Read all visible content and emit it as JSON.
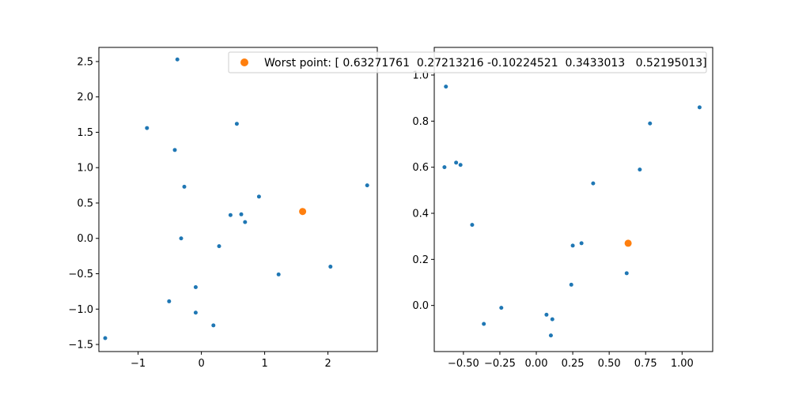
{
  "legend": {
    "label": "Worst point: [ 0.63271761  0.27213216 -0.10224521  0.3433013   0.52195013]",
    "placement": "upper-right",
    "marker_color": "#ff7f0e"
  },
  "colors": {
    "points": "#1f77b4",
    "highlight": "#ff7f0e",
    "axes": "#000000"
  },
  "chart_data": [
    {
      "type": "scatter",
      "xlim": [
        -1.62,
        2.78
      ],
      "ylim": [
        -1.6,
        2.7
      ],
      "xticks": [
        -1,
        0,
        1,
        2
      ],
      "xtick_labels": [
        "−1",
        "0",
        "1",
        "2"
      ],
      "yticks": [
        -1.5,
        -1.0,
        -0.5,
        0.0,
        0.5,
        1.0,
        1.5,
        2.0,
        2.5
      ],
      "ytick_labels": [
        "−1.5",
        "−1.0",
        "−0.5",
        "0.0",
        "0.5",
        "1.0",
        "1.5",
        "2.0",
        "2.5"
      ],
      "series": [
        {
          "color": "#1f77b4",
          "marker_size": "small",
          "points": [
            [
              -0.38,
              2.53
            ],
            [
              -0.86,
              1.56
            ],
            [
              0.56,
              1.62
            ],
            [
              -0.42,
              1.25
            ],
            [
              -0.27,
              0.73
            ],
            [
              0.91,
              0.59
            ],
            [
              2.62,
              0.75
            ],
            [
              0.46,
              0.33
            ],
            [
              0.63,
              0.34
            ],
            [
              0.69,
              0.23
            ],
            [
              -0.32,
              0.0
            ],
            [
              0.28,
              -0.11
            ],
            [
              1.22,
              -0.51
            ],
            [
              2.04,
              -0.4
            ],
            [
              -0.09,
              -0.69
            ],
            [
              -0.51,
              -0.89
            ],
            [
              -0.09,
              -1.05
            ],
            [
              0.19,
              -1.23
            ],
            [
              -1.52,
              -1.41
            ]
          ]
        },
        {
          "color": "#ff7f0e",
          "marker_size": "large",
          "points": [
            [
              1.6,
              0.38
            ]
          ]
        }
      ]
    },
    {
      "type": "scatter",
      "xlim": [
        -0.7,
        1.21
      ],
      "ylim": [
        -0.2,
        1.12
      ],
      "xticks": [
        -0.5,
        -0.25,
        0.0,
        0.25,
        0.5,
        0.75,
        1.0
      ],
      "xtick_labels": [
        "−0.50",
        "−0.25",
        "0.00",
        "0.25",
        "0.50",
        "0.75",
        "1.00"
      ],
      "yticks": [
        0.0,
        0.2,
        0.4,
        0.6,
        0.8,
        1.0
      ],
      "ytick_labels": [
        "0.0",
        "0.2",
        "0.4",
        "0.6",
        "0.8",
        "1.0"
      ],
      "series": [
        {
          "color": "#1f77b4",
          "marker_size": "small",
          "points": [
            [
              -0.62,
              0.95
            ],
            [
              1.12,
              0.86
            ],
            [
              0.78,
              0.79
            ],
            [
              -0.55,
              0.62
            ],
            [
              -0.52,
              0.61
            ],
            [
              -0.63,
              0.6
            ],
            [
              0.71,
              0.59
            ],
            [
              0.39,
              0.53
            ],
            [
              -0.44,
              0.35
            ],
            [
              0.25,
              0.26
            ],
            [
              0.31,
              0.27
            ],
            [
              0.24,
              0.09
            ],
            [
              0.62,
              0.14
            ],
            [
              -0.24,
              -0.01
            ],
            [
              -0.36,
              -0.08
            ],
            [
              0.07,
              -0.04
            ],
            [
              0.11,
              -0.06
            ],
            [
              0.1,
              -0.13
            ]
          ]
        },
        {
          "color": "#ff7f0e",
          "marker_size": "large",
          "points": [
            [
              0.63,
              0.27
            ]
          ]
        }
      ]
    }
  ]
}
